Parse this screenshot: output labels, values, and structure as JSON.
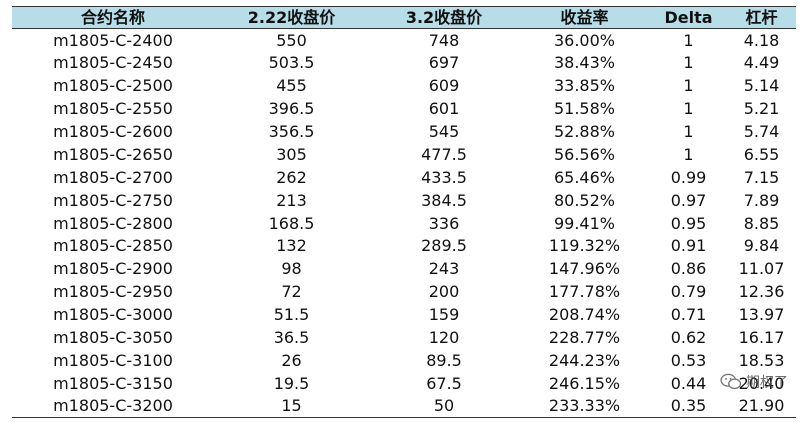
{
  "table": {
    "headers": [
      "合约名称",
      "2.22收盘价",
      "3.2收盘价",
      "收益率",
      "Delta",
      "杠杆"
    ],
    "rows": [
      [
        "m1805-C-2400",
        "550",
        "748",
        "36.00%",
        "1",
        "4.18"
      ],
      [
        "m1805-C-2450",
        "503.5",
        "697",
        "38.43%",
        "1",
        "4.49"
      ],
      [
        "m1805-C-2500",
        "455",
        "609",
        "33.85%",
        "1",
        "5.14"
      ],
      [
        "m1805-C-2550",
        "396.5",
        "601",
        "51.58%",
        "1",
        "5.21"
      ],
      [
        "m1805-C-2600",
        "356.5",
        "545",
        "52.88%",
        "1",
        "5.74"
      ],
      [
        "m1805-C-2650",
        "305",
        "477.5",
        "56.56%",
        "1",
        "6.55"
      ],
      [
        "m1805-C-2700",
        "262",
        "433.5",
        "65.46%",
        "0.99",
        "7.15"
      ],
      [
        "m1805-C-2750",
        "213",
        "384.5",
        "80.52%",
        "0.97",
        "7.89"
      ],
      [
        "m1805-C-2800",
        "168.5",
        "336",
        "99.41%",
        "0.95",
        "8.85"
      ],
      [
        "m1805-C-2850",
        "132",
        "289.5",
        "119.32%",
        "0.91",
        "9.84"
      ],
      [
        "m1805-C-2900",
        "98",
        "243",
        "147.96%",
        "0.86",
        "11.07"
      ],
      [
        "m1805-C-2950",
        "72",
        "200",
        "177.78%",
        "0.79",
        "12.36"
      ],
      [
        "m1805-C-3000",
        "51.5",
        "159",
        "208.74%",
        "0.71",
        "13.97"
      ],
      [
        "m1805-C-3050",
        "36.5",
        "120",
        "228.77%",
        "0.62",
        "16.17"
      ],
      [
        "m1805-C-3100",
        "26",
        "89.5",
        "244.23%",
        "0.53",
        "18.53"
      ],
      [
        "m1805-C-3150",
        "19.5",
        "67.5",
        "246.15%",
        "0.44",
        "20.40"
      ],
      [
        "m1805-C-3200",
        "15",
        "50",
        "233.33%",
        "0.35",
        "21.90"
      ]
    ]
  },
  "watermark": {
    "text": "期权了",
    "icon": "wechat-icon"
  }
}
